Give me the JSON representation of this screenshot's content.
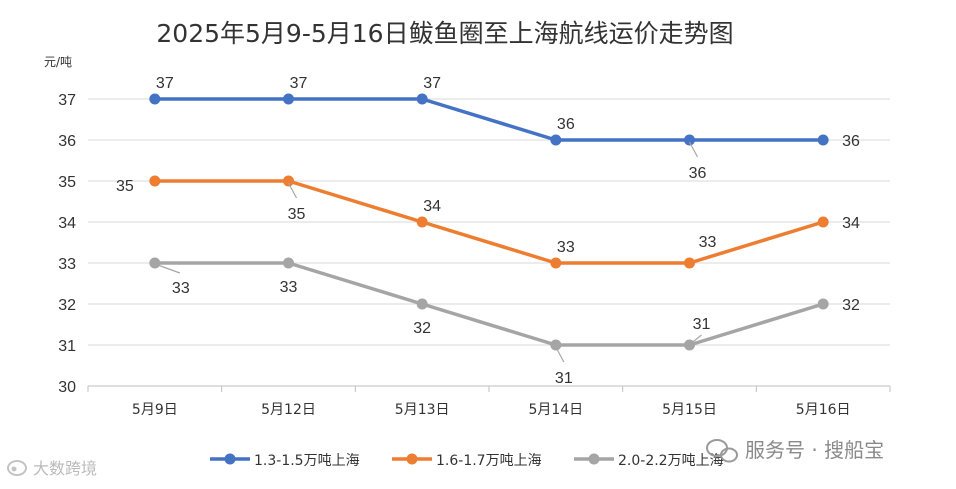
{
  "chart_data": {
    "type": "line",
    "title": "2025年5月9-5月16日鲅鱼圈至上海航线运价走势图",
    "ylabel": "元/吨",
    "xlabel": "",
    "categories": [
      "5月9日",
      "5月12日",
      "5月13日",
      "5月14日",
      "5月15日",
      "5月16日"
    ],
    "ylim": [
      30,
      37
    ],
    "yticks": [
      30,
      31,
      32,
      33,
      34,
      35,
      36,
      37
    ],
    "grid": true,
    "legend_position": "bottom",
    "series": [
      {
        "name": "1.3-1.5万吨上海",
        "color": "#4472c4",
        "values": [
          37,
          37,
          37,
          36,
          36,
          36
        ]
      },
      {
        "name": "1.6-1.7万吨上海",
        "color": "#ed7d31",
        "values": [
          35,
          35,
          34,
          33,
          33,
          34
        ]
      },
      {
        "name": "2.0-2.2万吨上海",
        "color": "#a5a5a5",
        "values": [
          33,
          33,
          32,
          31,
          31,
          32
        ]
      }
    ]
  },
  "watermarks": {
    "right": "服务号 · 搜船宝",
    "left": "大数跨境",
    "right_icon": "wechat-icon",
    "left_icon": "weibo-icon"
  }
}
